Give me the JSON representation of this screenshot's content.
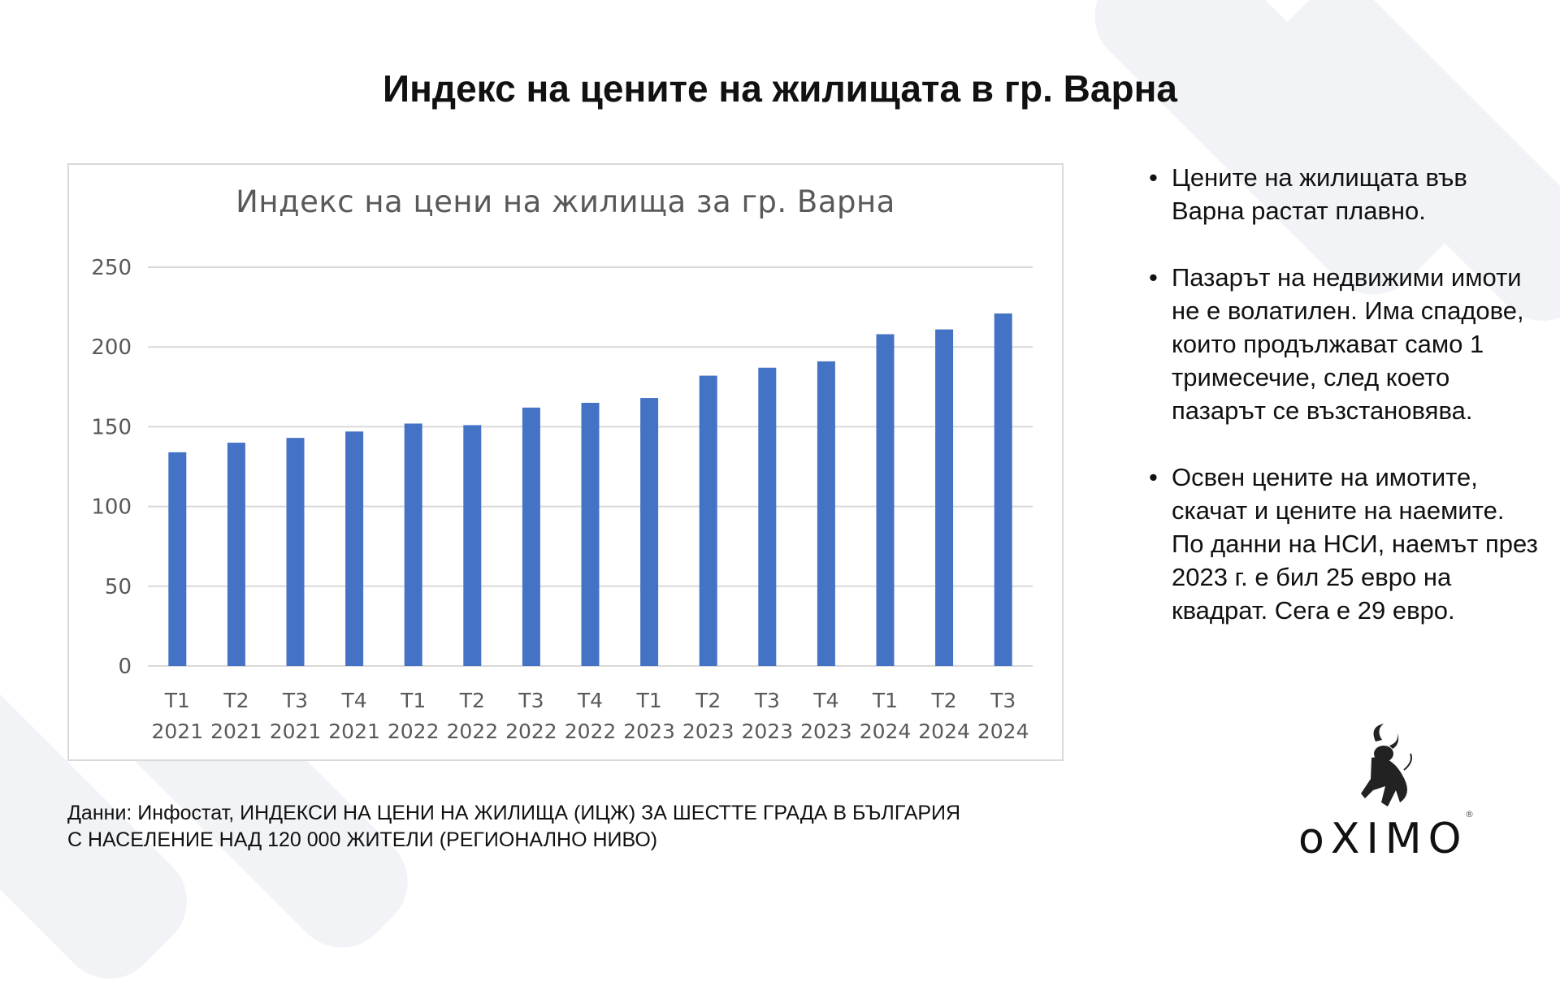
{
  "title": "Индекс на цените на жилищата в гр. Варна",
  "chart_data": {
    "type": "bar",
    "title": "Индекс на цени на жилища за гр. Варна",
    "categories": [
      "Т1 2021",
      "Т2 2021",
      "Т3 2021",
      "Т4 2021",
      "Т1 2022",
      "Т2 2022",
      "Т3 2022",
      "Т4 2022",
      "Т1 2023",
      "Т2 2023",
      "Т3 2023",
      "Т4 2023",
      "Т1 2024",
      "Т2 2024",
      "Т3 2024"
    ],
    "category_lines": [
      [
        "Т1",
        "2021"
      ],
      [
        "Т2",
        "2021"
      ],
      [
        "Т3",
        "2021"
      ],
      [
        "Т4",
        "2021"
      ],
      [
        "Т1",
        "2022"
      ],
      [
        "Т2",
        "2022"
      ],
      [
        "Т3",
        "2022"
      ],
      [
        "Т4",
        "2022"
      ],
      [
        "Т1",
        "2023"
      ],
      [
        "Т2",
        "2023"
      ],
      [
        "Т3",
        "2023"
      ],
      [
        "Т4",
        "2023"
      ],
      [
        "Т1",
        "2024"
      ],
      [
        "Т2",
        "2024"
      ],
      [
        "Т3",
        "2024"
      ]
    ],
    "values": [
      134,
      140,
      143,
      147,
      152,
      151,
      162,
      165,
      168,
      182,
      187,
      191,
      208,
      211,
      221
    ],
    "ylim": [
      0,
      250
    ],
    "yticks": [
      "0",
      "50",
      "100",
      "150",
      "200",
      "250"
    ],
    "grid": true,
    "bar_color": "#4472c4",
    "xlabel": "",
    "ylabel": ""
  },
  "bullets": [
    "Цените на жилищата във Варна растат плавно.",
    "Пазарът на недвижими имоти не е волатилен. Има спадове, които продължават само 1 тримесечие, след което пазарът се възстановява.",
    "Освен цените на имотите, скачат и цените на наемите. По данни на НСИ, наемът през 2023 г. е бил 25 евро на квадрат. Сега е 29 евро."
  ],
  "source": "Данни: Инфостат, ИНДЕКСИ НА ЦЕНИ НА ЖИЛИЩА (ИЦЖ) ЗА ШЕСТТЕ ГРАДА В БЪЛГАРИЯ С НАСЕЛЕНИЕ НАД 120 000 ЖИТЕЛИ (РЕГИОНАЛНО НИВО)",
  "logo": {
    "text": "oXIMO",
    "icon": "bull-icon"
  }
}
